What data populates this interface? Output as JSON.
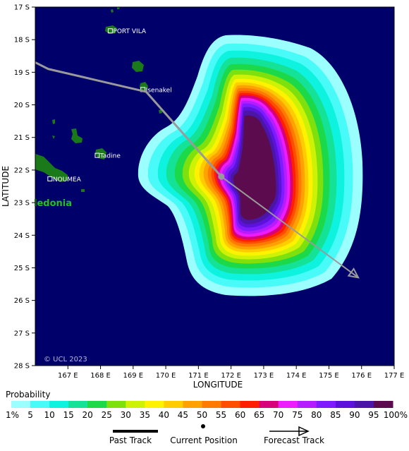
{
  "map": {
    "background_color": "#00006b",
    "land_color": "#1a7a1a",
    "lon_range": [
      166,
      177
    ],
    "lat_range": [
      17,
      28
    ],
    "lon_ticks": [
      "167 E",
      "168 E",
      "169 E",
      "170 E",
      "171 E",
      "172 E",
      "173 E",
      "174 E",
      "175 E",
      "176 E",
      "177 E"
    ],
    "lat_ticks": [
      "17 S",
      "18 S",
      "19 S",
      "20 S",
      "21 S",
      "22 S",
      "23 S",
      "24 S",
      "25 S",
      "26 S",
      "27 S",
      "28 S"
    ],
    "xlabel": "LONGITUDE",
    "ylabel": "LATITUDE",
    "places": [
      {
        "name": "PORT VILA",
        "lon": 168.3,
        "lat": 17.73
      },
      {
        "name": "Isenakel",
        "lon": 169.3,
        "lat": 19.53
      },
      {
        "name": "Tadine",
        "lon": 167.9,
        "lat": 21.55
      },
      {
        "name": "NOUMEA",
        "lon": 166.45,
        "lat": 22.27
      }
    ],
    "region_label": "ledonia",
    "copyright": "© UCL 2023",
    "track": {
      "past": [
        [
          166.0,
          18.7
        ],
        [
          166.4,
          18.9
        ],
        [
          169.4,
          19.6
        ],
        [
          171.7,
          22.2
        ]
      ],
      "current": [
        171.7,
        22.2
      ],
      "forecast": [
        [
          171.7,
          22.2
        ],
        [
          175.9,
          25.3
        ]
      ],
      "color": "#9a9a9a"
    }
  },
  "legend": {
    "title": "Probability",
    "labels": [
      "1%",
      "5",
      "10",
      "15",
      "20",
      "25",
      "30",
      "35",
      "40",
      "45",
      "50",
      "55",
      "60",
      "65",
      "70",
      "75",
      "80",
      "85",
      "90",
      "95",
      "100%"
    ],
    "colors": [
      "#9bffff",
      "#48fbf9",
      "#0ef2e0",
      "#14e296",
      "#1cd94a",
      "#7ee00c",
      "#cdf205",
      "#fff200",
      "#ffcc00",
      "#ffa100",
      "#ff7a00",
      "#ff4e00",
      "#ff1e00",
      "#d8007a",
      "#ec1cff",
      "#b51cff",
      "#7e1cff",
      "#5c12db",
      "#4b15a7",
      "#5b0b4e"
    ],
    "keys": {
      "past": "Past Track",
      "current": "Current Position",
      "forecast": "Forecast Track"
    }
  }
}
